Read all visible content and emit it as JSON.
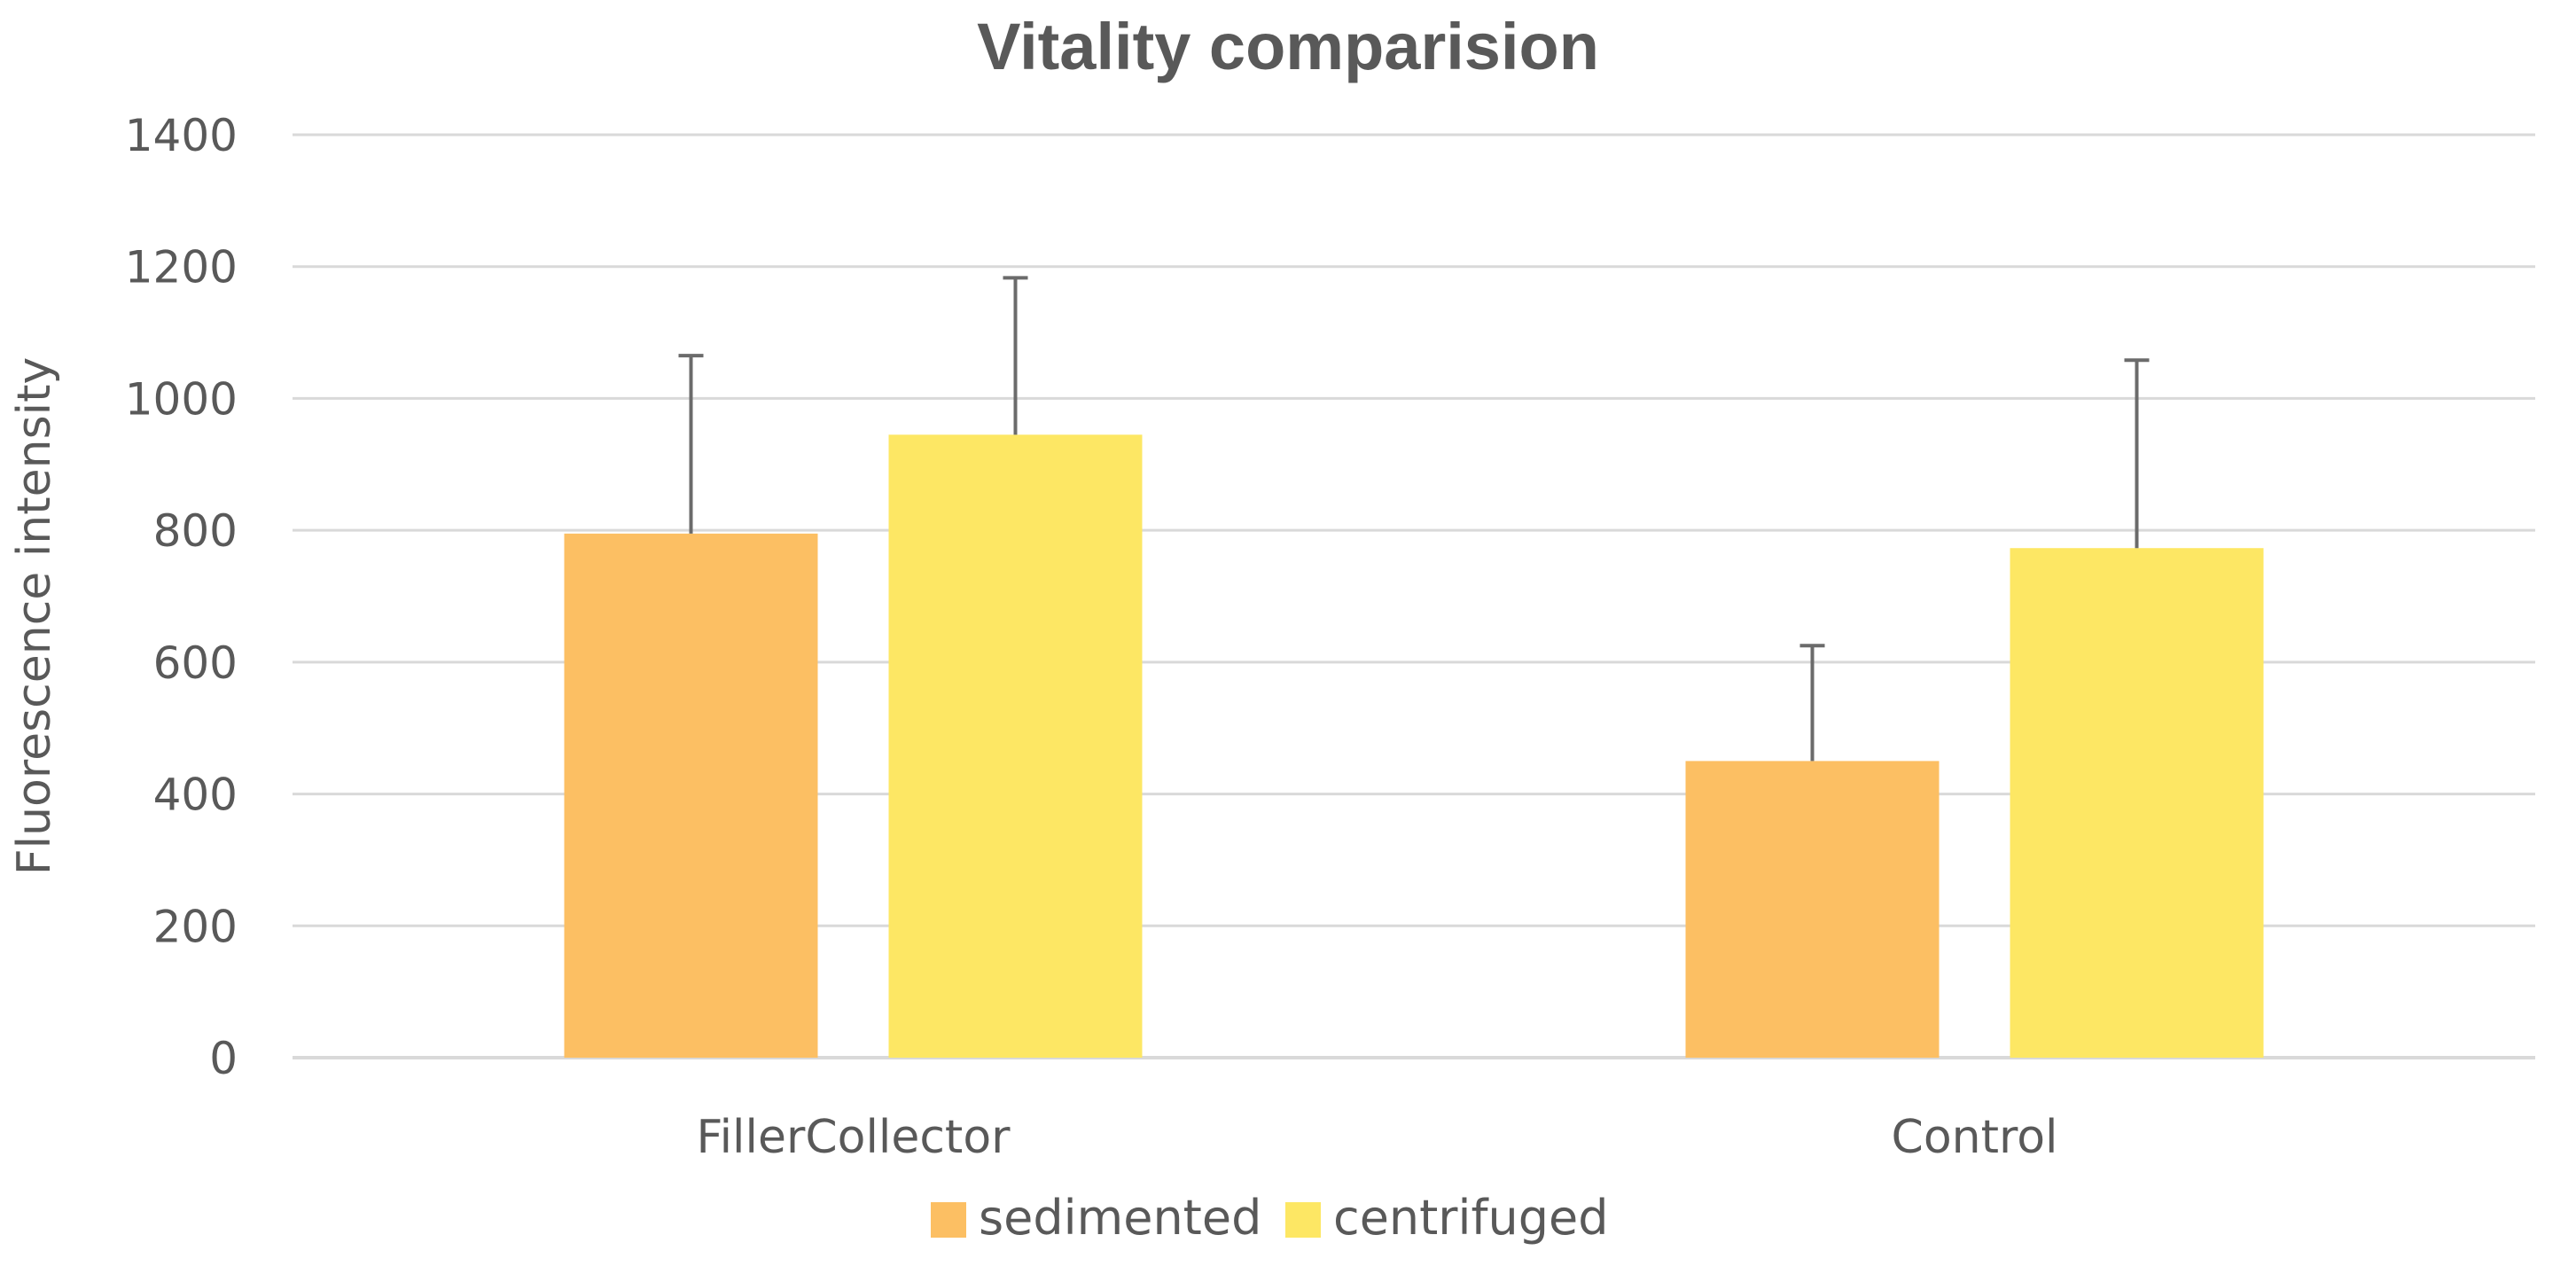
{
  "chart_data": {
    "type": "bar",
    "title": "Vitality comparision",
    "xlabel": "",
    "ylabel": "Fluorescence intensity",
    "categories": [
      "FillerCollector",
      "Control"
    ],
    "series": [
      {
        "name": "sedimented",
        "color": "#fcbf63",
        "values": [
          795,
          450
        ],
        "error_upper": [
          1065,
          625
        ]
      },
      {
        "name": "centrifuged",
        "color": "#fde764",
        "values": [
          945,
          773
        ],
        "error_upper": [
          1183,
          1058
        ]
      }
    ],
    "ylim": [
      0,
      1400
    ],
    "yticks": [
      0,
      200,
      400,
      600,
      800,
      1000,
      1200,
      1400
    ],
    "grid": true,
    "legend_position": "bottom"
  }
}
